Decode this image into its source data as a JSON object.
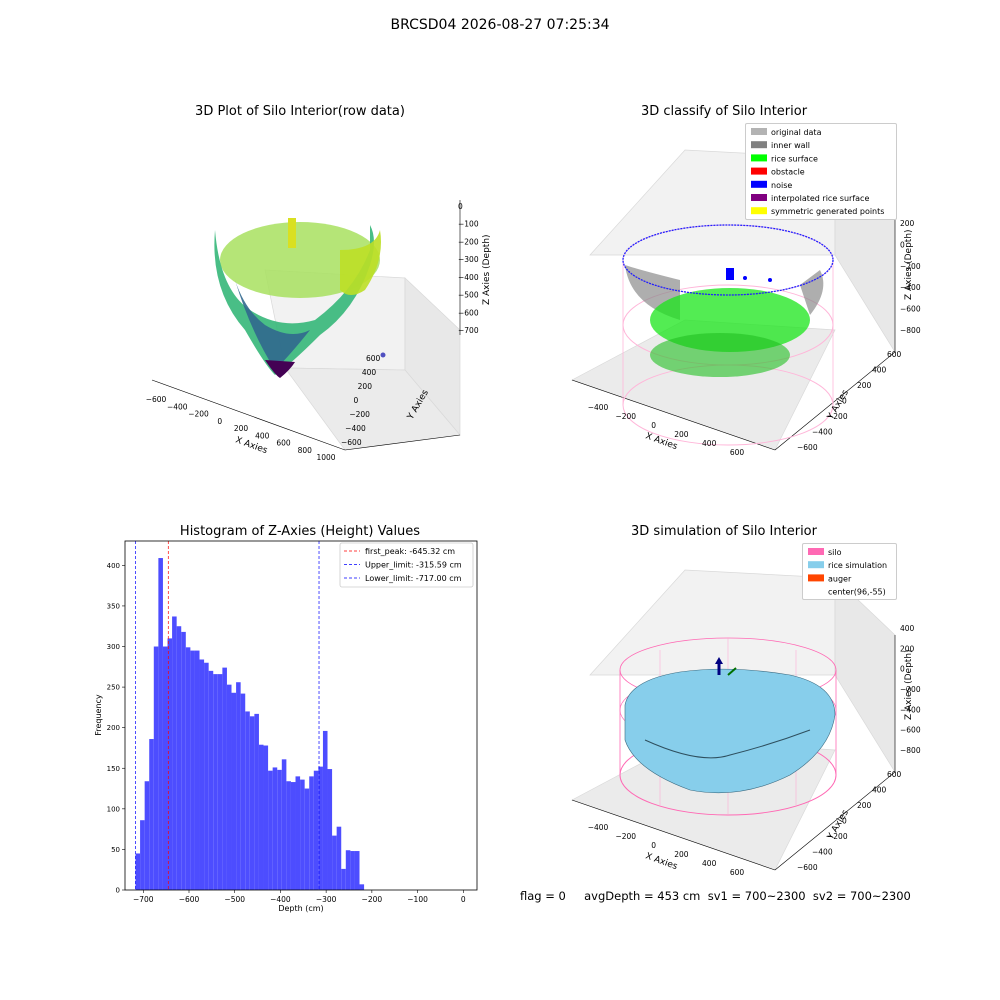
{
  "suptitle": "BRCSD04 2026-08-27 07:25:34",
  "panel1": {
    "title": "3D Plot of Silo Interior(row data)",
    "x_label": "X Axies",
    "y_label": "Y Axies",
    "z_label": "Z Axies (Depth)",
    "x_ticks": [
      "−600",
      "−400",
      "−200",
      "0",
      "200",
      "400",
      "600",
      "800",
      "1000"
    ],
    "y_ticks": [
      "600",
      "400",
      "200",
      "0",
      "−200",
      "−400",
      "−600"
    ],
    "z_ticks": [
      "0",
      "−100",
      "−200",
      "−300",
      "−400",
      "−500",
      "−600",
      "−700"
    ]
  },
  "panel2": {
    "title": "3D classify of Silo Interior",
    "x_label": "X Axies",
    "y_label": "Y Axies",
    "z_label": "Z Axies (Depth)",
    "x_ticks": [
      "−400",
      "−200",
      "0",
      "200",
      "400",
      "600"
    ],
    "y_ticks": [
      "600",
      "400",
      "200",
      "0",
      "−200",
      "−400",
      "−600"
    ],
    "z_ticks": [
      "200",
      "0",
      "−200",
      "−400",
      "−600",
      "−800"
    ],
    "legend": [
      {
        "label": "original data",
        "color": "#b3b3b3"
      },
      {
        "label": "inner wall",
        "color": "#808080"
      },
      {
        "label": "rice surface",
        "color": "#00ff00"
      },
      {
        "label": "obstacle",
        "color": "#ff0000"
      },
      {
        "label": "noise",
        "color": "#0000ff"
      },
      {
        "label": "interpolated rice surface",
        "color": "#800080"
      },
      {
        "label": "symmetric generated points",
        "color": "#ffff00"
      }
    ]
  },
  "panel4": {
    "title": "3D simulation of Silo Interior",
    "x_label": "X Axies",
    "y_label": "Y Axies",
    "z_label": "Z Axies (Depth)",
    "x_ticks": [
      "−400",
      "−200",
      "0",
      "200",
      "400",
      "600"
    ],
    "y_ticks": [
      "600",
      "400",
      "200",
      "0",
      "−200",
      "−400",
      "−600"
    ],
    "z_ticks": [
      "400",
      "200",
      "0",
      "−200",
      "−400",
      "−600",
      "−800"
    ],
    "legend": [
      {
        "label": "silo",
        "color": "#ff69b4"
      },
      {
        "label": "rice simulation",
        "color": "#87ceeb"
      },
      {
        "label": "auger",
        "color": "#ff4500"
      },
      {
        "label": "center(96,-55)",
        "color": ""
      }
    ]
  },
  "footer": "flag = 0     avgDepth = 453 cm  sv1 = 700~2300  sv2 = 700~2300",
  "chart_data": {
    "type": "bar",
    "title": "Histogram of Z-Axies (Height) Values",
    "xlabel": "Depth (cm)",
    "ylabel": "Frequency",
    "xlim": [
      -740,
      30
    ],
    "ylim": [
      0,
      430
    ],
    "x_ticks": [
      -700,
      -600,
      -500,
      -400,
      -300,
      -200,
      -100,
      0
    ],
    "y_ticks": [
      0,
      50,
      100,
      150,
      200,
      250,
      300,
      350,
      400
    ],
    "bin_start": -717,
    "bin_width": 10,
    "color": "#4d4dff",
    "values": [
      45,
      86,
      134,
      186,
      300,
      409,
      300,
      310,
      337,
      325,
      318,
      299,
      295,
      295,
      284,
      280,
      270,
      266,
      266,
      274,
      253,
      243,
      256,
      242,
      220,
      214,
      217,
      179,
      178,
      147,
      151,
      148,
      161,
      134,
      133,
      140,
      136,
      125,
      140,
      147,
      152,
      196,
      149,
      67,
      78,
      26,
      49,
      48,
      48,
      7
    ],
    "vlines": [
      {
        "label": "first_peak: -645.32 cm",
        "x": -645.32,
        "color": "#ff0000"
      },
      {
        "label": "Upper_limit: -315.59 cm",
        "x": -315.59,
        "color": "#0000ff"
      },
      {
        "label": "Lower_limit: -717.00 cm",
        "x": -717.0,
        "color": "#0000ff"
      }
    ],
    "legend_position": "top-right"
  }
}
